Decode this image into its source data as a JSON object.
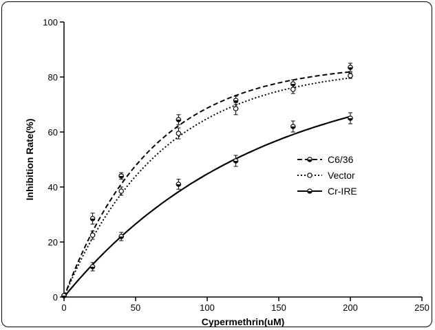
{
  "chart_data": {
    "type": "line",
    "xlabel": "Cypermethrin(uM)",
    "ylabel": "Inhibition Rate(%)",
    "xlim": [
      0,
      250
    ],
    "ylim": [
      0,
      100
    ],
    "xticks": [
      0,
      50,
      100,
      150,
      200,
      250
    ],
    "yticks": [
      0,
      20,
      40,
      60,
      80,
      100
    ],
    "grid": false,
    "legend_position": "right",
    "series": [
      {
        "name": "C6/36",
        "line_style": "dashed",
        "marker": "half-filled-circle",
        "color": "#000000",
        "points": [
          {
            "x": 0,
            "y": 0.5,
            "err": 0.5
          },
          {
            "x": 20,
            "y": 28.5,
            "err": 2.0
          },
          {
            "x": 40,
            "y": 44,
            "err": 1.2
          },
          {
            "x": 80,
            "y": 64.5,
            "err": 1.8
          },
          {
            "x": 120,
            "y": 71.5,
            "err": 1.5
          },
          {
            "x": 160,
            "y": 77.5,
            "err": 1.5
          },
          {
            "x": 200,
            "y": 83.5,
            "err": 1.5
          }
        ],
        "curve": {
          "model": "exponential-rise",
          "a": 85,
          "k": 0.0165
        }
      },
      {
        "name": "Vector",
        "line_style": "dotted",
        "marker": "open-circle",
        "color": "#000000",
        "points": [
          {
            "x": 0,
            "y": 0.5,
            "err": 0.5
          },
          {
            "x": 20,
            "y": 22.5,
            "err": 1.5
          },
          {
            "x": 40,
            "y": 38.5,
            "err": 1.5
          },
          {
            "x": 80,
            "y": 59.5,
            "err": 2.0
          },
          {
            "x": 120,
            "y": 68.5,
            "err": 2.2
          },
          {
            "x": 160,
            "y": 75.5,
            "err": 1.5
          },
          {
            "x": 200,
            "y": 80.5,
            "err": 1.0
          }
        ],
        "curve": {
          "model": "exponential-rise",
          "a": 84,
          "k": 0.0148
        }
      },
      {
        "name": "Cr-IRE",
        "line_style": "solid",
        "marker": "half-filled-circle",
        "color": "#000000",
        "points": [
          {
            "x": 0,
            "y": 0.5,
            "err": 0.5
          },
          {
            "x": 20,
            "y": 11,
            "err": 1.5
          },
          {
            "x": 40,
            "y": 22,
            "err": 1.5
          },
          {
            "x": 80,
            "y": 41,
            "err": 1.8
          },
          {
            "x": 120,
            "y": 49.5,
            "err": 2.0
          },
          {
            "x": 160,
            "y": 62,
            "err": 2.0
          },
          {
            "x": 200,
            "y": 65,
            "err": 2.0
          }
        ],
        "curve": {
          "model": "exponential-rise",
          "a": 84,
          "k": 0.0076
        }
      }
    ]
  }
}
